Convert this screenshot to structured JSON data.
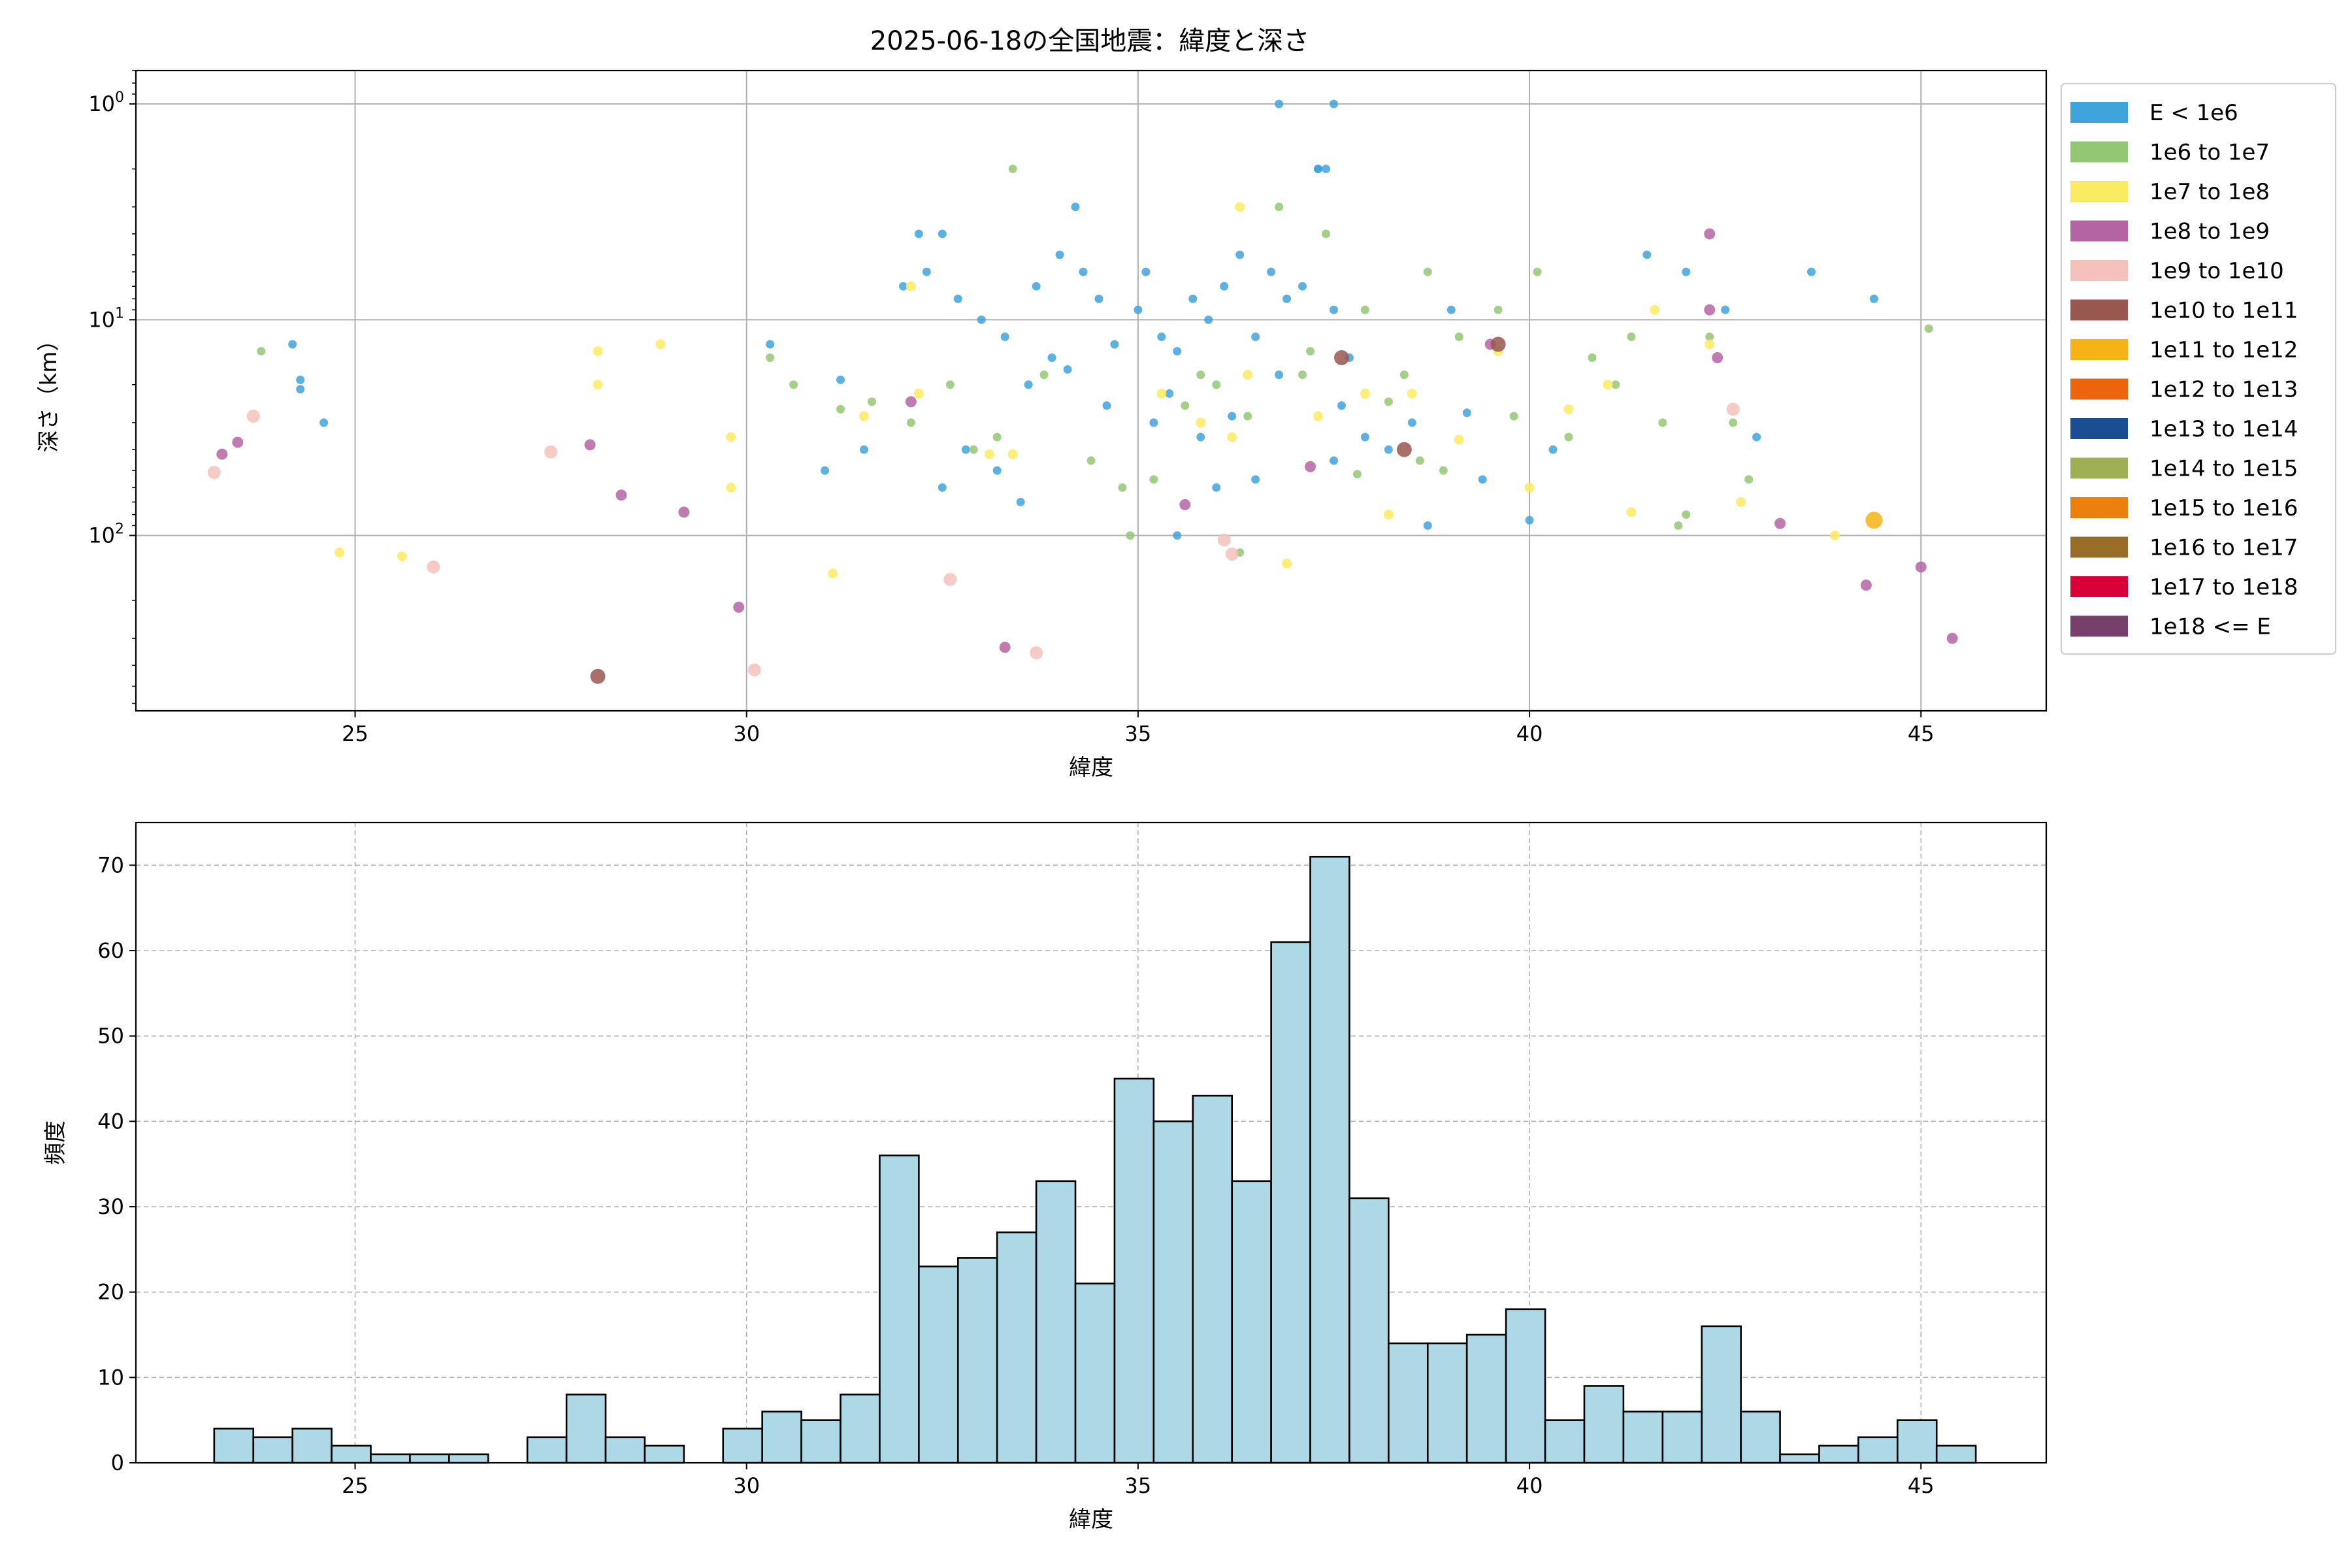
{
  "figure": {
    "title": "2025-06-18の全国地震：緯度と深さ"
  },
  "chart_data": [
    {
      "type": "scatter",
      "title": "2025-06-18の全国地震：緯度と深さ",
      "xlabel": "緯度",
      "ylabel": "深さ（km）",
      "xlim": [
        22.2,
        46.6
      ],
      "ylim": [
        0.7,
        650
      ],
      "y_scale": "log",
      "y_inverted": true,
      "grid": true,
      "legend_position": "outside right",
      "x_ticks": [
        25,
        30,
        35,
        40,
        45
      ],
      "x_tick_labels": [
        "25",
        "30",
        "35",
        "40",
        "45"
      ],
      "y_ticks": [
        1,
        10,
        100
      ],
      "legend": [
        {
          "label": "E < 1e6",
          "color": "#3fa3dc"
        },
        {
          "label": "1e6 to 1e7",
          "color": "#93c774"
        },
        {
          "label": "1e7 to 1e8",
          "color": "#fbeb62"
        },
        {
          "label": "1e8 to 1e9",
          "color": "#b564a3"
        },
        {
          "label": "1e9 to 1e10",
          "color": "#f5c1bb"
        },
        {
          "label": "1e10 to 1e11",
          "color": "#985750"
        },
        {
          "label": "1e11 to 1e12",
          "color": "#f7b315"
        },
        {
          "label": "1e12 to 1e13",
          "color": "#ec650d"
        },
        {
          "label": "1e13 to 1e14",
          "color": "#1b4d92"
        },
        {
          "label": "1e14 to 1e15",
          "color": "#9fb054"
        },
        {
          "label": "1e15 to 1e16",
          "color": "#ec800f"
        },
        {
          "label": "1e16 to 1e17",
          "color": "#976d27"
        },
        {
          "label": "1e17 to 1e18",
          "color": "#d9003a"
        },
        {
          "label": "1e18 <= E",
          "color": "#773f6b"
        }
      ],
      "series": [
        {
          "name": "E < 1e6",
          "points": [
            [
              24.2,
              13
            ],
            [
              24.3,
              19
            ],
            [
              24.3,
              21
            ],
            [
              24.6,
              30
            ],
            [
              32,
              7
            ],
            [
              32.2,
              4
            ],
            [
              32.3,
              6
            ],
            [
              32.5,
              4
            ],
            [
              32.7,
              8
            ],
            [
              33,
              10
            ],
            [
              33.3,
              12
            ],
            [
              33.7,
              7
            ],
            [
              34,
              5
            ],
            [
              34.2,
              3
            ],
            [
              34.3,
              6
            ],
            [
              34.5,
              8
            ],
            [
              34.7,
              13
            ],
            [
              35,
              9
            ],
            [
              35.1,
              6
            ],
            [
              35.3,
              12
            ],
            [
              35.5,
              14
            ],
            [
              35.7,
              8
            ],
            [
              35.9,
              10
            ],
            [
              36.1,
              7
            ],
            [
              36.3,
              5
            ],
            [
              36.5,
              12
            ],
            [
              36.7,
              6
            ],
            [
              36.9,
              8
            ],
            [
              37.1,
              7
            ],
            [
              37.3,
              2
            ],
            [
              37.5,
              9
            ],
            [
              37.7,
              15
            ],
            [
              37.9,
              35
            ],
            [
              38.2,
              40
            ],
            [
              38.5,
              30
            ],
            [
              38.7,
              90
            ],
            [
              39,
              9
            ],
            [
              39.2,
              27
            ],
            [
              39.4,
              55
            ],
            [
              40,
              85
            ],
            [
              40.3,
              40
            ],
            [
              41.5,
              5
            ],
            [
              42,
              6
            ],
            [
              42.5,
              9
            ],
            [
              42.9,
              35
            ],
            [
              43.6,
              6
            ],
            [
              44.4,
              8
            ],
            [
              36.8,
              1
            ],
            [
              37.5,
              1
            ],
            [
              37.3,
              2
            ],
            [
              37.4,
              2
            ],
            [
              32.5,
              60
            ],
            [
              32.8,
              40
            ],
            [
              33.2,
              50
            ],
            [
              33.5,
              70
            ],
            [
              35.5,
              100
            ],
            [
              36.0,
              60
            ],
            [
              36.5,
              55
            ],
            [
              37.5,
              45
            ],
            [
              33.6,
              20
            ],
            [
              34.6,
              25
            ],
            [
              35.2,
              30
            ],
            [
              35.8,
              35
            ],
            [
              36.2,
              28
            ],
            [
              33.9,
              15
            ],
            [
              34.1,
              17
            ],
            [
              35.4,
              22
            ],
            [
              36.8,
              18
            ],
            [
              37.6,
              25
            ],
            [
              31.5,
              40
            ],
            [
              31,
              50
            ],
            [
              30.3,
              13
            ],
            [
              31.2,
              19
            ]
          ]
        },
        {
          "name": "1e6 to 1e7",
          "points": [
            [
              23.8,
              14
            ],
            [
              30.3,
              15
            ],
            [
              30.6,
              20
            ],
            [
              31.2,
              26
            ],
            [
              31.6,
              24
            ],
            [
              32.1,
              30
            ],
            [
              32.6,
              20
            ],
            [
              33.2,
              35
            ],
            [
              33.4,
              2
            ],
            [
              33.8,
              18
            ],
            [
              34.4,
              45
            ],
            [
              34.8,
              60
            ],
            [
              35.2,
              55
            ],
            [
              35.6,
              25
            ],
            [
              36,
              20
            ],
            [
              36.4,
              28
            ],
            [
              36.8,
              3
            ],
            [
              37.1,
              18
            ],
            [
              37.4,
              4
            ],
            [
              37.8,
              52
            ],
            [
              38.4,
              18
            ],
            [
              38.7,
              6
            ],
            [
              38.9,
              50
            ],
            [
              39.1,
              12
            ],
            [
              39.6,
              9
            ],
            [
              40.1,
              6
            ],
            [
              40.5,
              35
            ],
            [
              40.8,
              15
            ],
            [
              41.3,
              12
            ],
            [
              41.7,
              30
            ],
            [
              42,
              80
            ],
            [
              42.3,
              12
            ],
            [
              42.6,
              30
            ],
            [
              42.8,
              55
            ],
            [
              45.1,
              11
            ],
            [
              34.9,
              100
            ],
            [
              36.3,
              120
            ],
            [
              37.2,
              14
            ],
            [
              32.9,
              40
            ],
            [
              35.8,
              18
            ],
            [
              38.2,
              24
            ],
            [
              39.8,
              28
            ],
            [
              41.1,
              20
            ],
            [
              37.9,
              9
            ],
            [
              38.6,
              45
            ],
            [
              41.9,
              90
            ]
          ]
        },
        {
          "name": "1e7 to 1e8",
          "points": [
            [
              24.8,
              120
            ],
            [
              25.6,
              125
            ],
            [
              28.1,
              14
            ],
            [
              28.1,
              20
            ],
            [
              28.9,
              13
            ],
            [
              29.8,
              35
            ],
            [
              29.8,
              60
            ],
            [
              31.1,
              150
            ],
            [
              31.5,
              28
            ],
            [
              32.1,
              7
            ],
            [
              32.2,
              22
            ],
            [
              33.4,
              42
            ],
            [
              35.3,
              22
            ],
            [
              35.8,
              30
            ],
            [
              36.3,
              3
            ],
            [
              36.4,
              18
            ],
            [
              36.9,
              135
            ],
            [
              37.3,
              28
            ],
            [
              37.9,
              22
            ],
            [
              38.2,
              80
            ],
            [
              38.5,
              22
            ],
            [
              39.1,
              36
            ],
            [
              39.6,
              14
            ],
            [
              40,
              60
            ],
            [
              40.5,
              26
            ],
            [
              41,
              20
            ],
            [
              41.3,
              78
            ],
            [
              41.6,
              9
            ],
            [
              42.3,
              13
            ],
            [
              42.7,
              70
            ],
            [
              43.9,
              100
            ],
            [
              33.1,
              42
            ],
            [
              36.2,
              35
            ]
          ]
        },
        {
          "name": "1e8 to 1e9",
          "points": [
            [
              23.3,
              42
            ],
            [
              23.5,
              37
            ],
            [
              28.0,
              38
            ],
            [
              28.4,
              65
            ],
            [
              29.2,
              78
            ],
            [
              29.9,
              215
            ],
            [
              33.3,
              330
            ],
            [
              35.6,
              72
            ],
            [
              37.2,
              48
            ],
            [
              39.5,
              13
            ],
            [
              42.3,
              4
            ],
            [
              42.3,
              9
            ],
            [
              42.4,
              15
            ],
            [
              43.2,
              88
            ],
            [
              44.3,
              170
            ],
            [
              45,
              140
            ],
            [
              45.4,
              300
            ],
            [
              32.1,
              24
            ]
          ]
        },
        {
          "name": "1e9 to 1e10",
          "points": [
            [
              23.2,
              51
            ],
            [
              23.7,
              28
            ],
            [
              27.5,
              41
            ],
            [
              26,
              140
            ],
            [
              32.6,
              160
            ],
            [
              33.7,
              350
            ],
            [
              36.1,
              105
            ],
            [
              36.2,
              122
            ],
            [
              42.6,
              26
            ],
            [
              30.1,
              420
            ]
          ]
        },
        {
          "name": "1e10 to 1e11",
          "points": [
            [
              28.1,
              450
            ],
            [
              37.6,
              15
            ],
            [
              38.4,
              40
            ],
            [
              39.6,
              13
            ]
          ]
        },
        {
          "name": "1e11 to 1e12",
          "points": [
            [
              44.4,
              85
            ]
          ]
        }
      ]
    },
    {
      "type": "bar",
      "subtype": "histogram",
      "xlabel": "緯度",
      "ylabel": "頻度",
      "xlim": [
        22.2,
        46.6
      ],
      "ylim": [
        0,
        75
      ],
      "grid": true,
      "bar_color": "#add8e6",
      "bin_edges": [
        23.2,
        23.7,
        24.2,
        24.7,
        25.2,
        25.7,
        26.2,
        26.7,
        27.2,
        27.7,
        28.2,
        28.7,
        29.2,
        29.7,
        30.2,
        30.7,
        31.2,
        31.7,
        32.2,
        32.7,
        33.2,
        33.7,
        34.2,
        34.7,
        35.2,
        35.7,
        36.2,
        36.7,
        37.2,
        37.7,
        38.2,
        38.7,
        39.2,
        39.7,
        40.2,
        40.7,
        41.2,
        41.7,
        42.2,
        42.7,
        43.2,
        43.7,
        44.2,
        44.7,
        45.2,
        45.7
      ],
      "values": [
        4,
        3,
        4,
        2,
        1,
        1,
        1,
        0,
        3,
        8,
        3,
        2,
        0,
        4,
        6,
        5,
        8,
        36,
        23,
        24,
        27,
        33,
        21,
        45,
        40,
        43,
        33,
        61,
        71,
        31,
        14,
        14,
        15,
        18,
        5,
        9,
        6,
        6,
        16,
        6,
        1,
        2,
        3,
        5,
        2
      ],
      "x_ticks": [
        25,
        30,
        35,
        40,
        45
      ],
      "x_tick_labels": [
        "25",
        "30",
        "35",
        "40",
        "45"
      ],
      "y_ticks": [
        0,
        10,
        20,
        30,
        40,
        50,
        60,
        70
      ],
      "y_tick_labels": [
        "0",
        "10",
        "20",
        "30",
        "40",
        "50",
        "60",
        "70"
      ]
    }
  ]
}
